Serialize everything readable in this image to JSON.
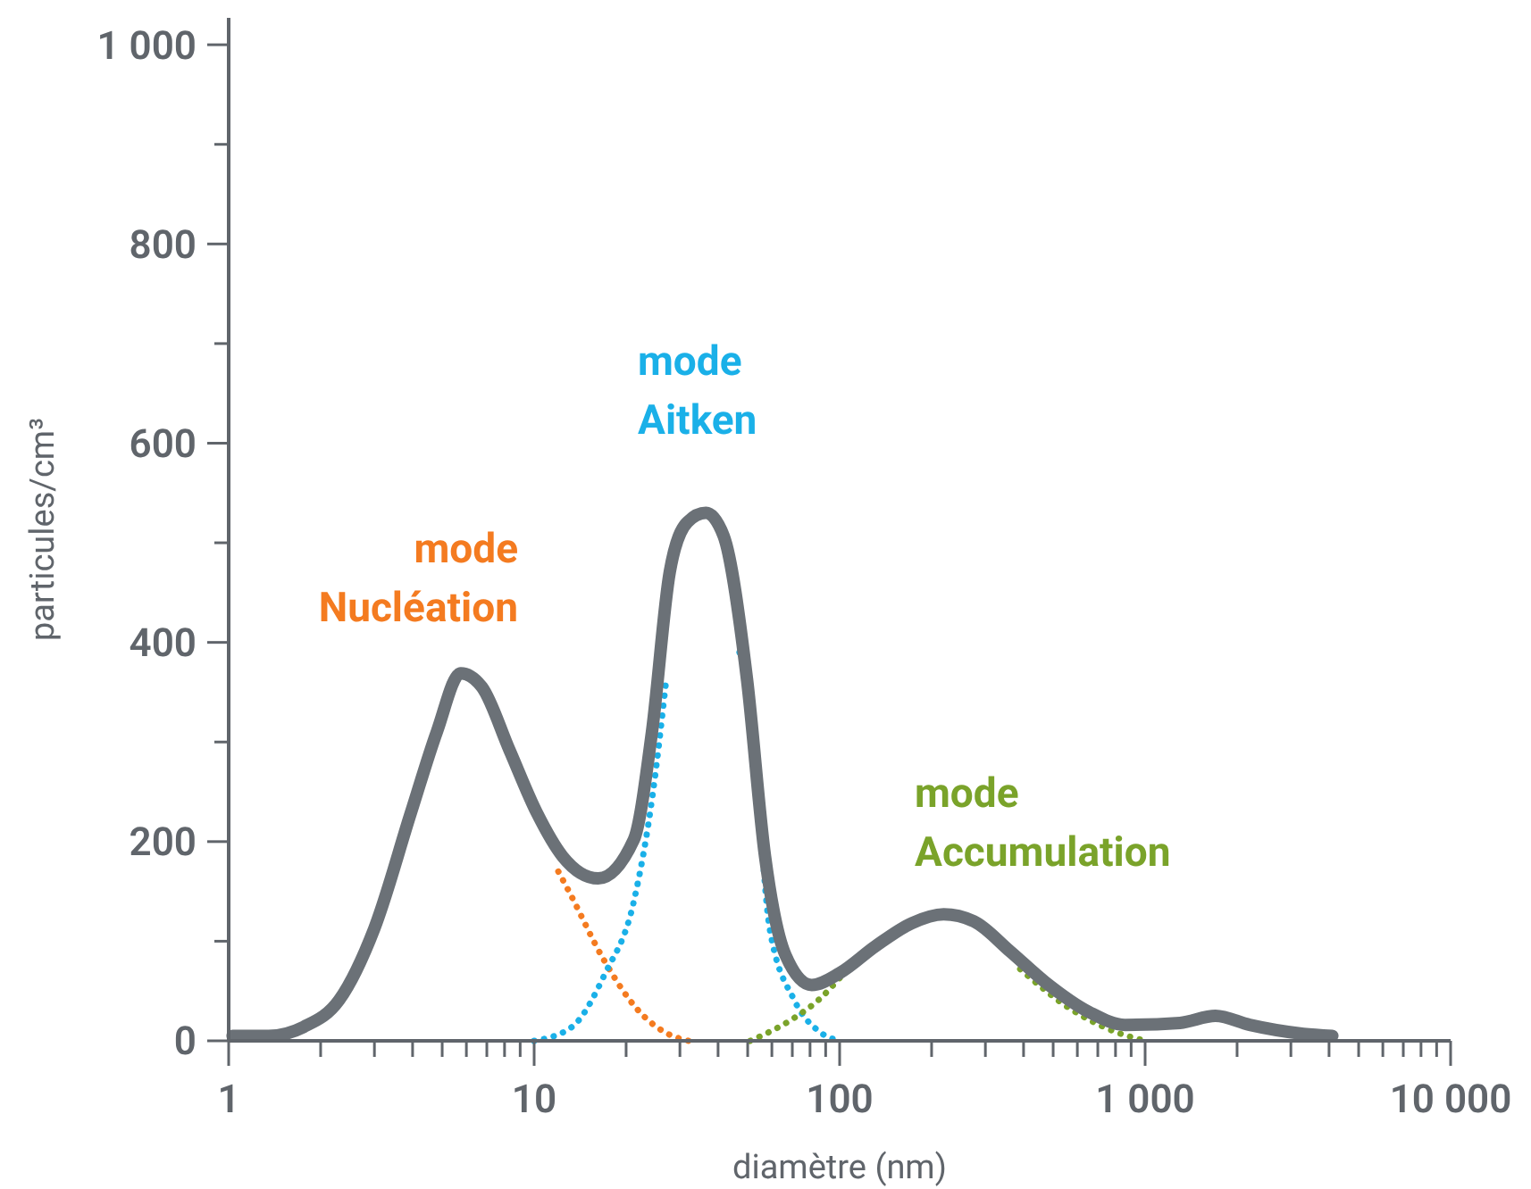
{
  "chart_data": {
    "type": "line",
    "xlabel": "diamètre (nm)",
    "ylabel": "particules/cm³",
    "log": "x",
    "grid": false,
    "marker": "none",
    "xlim": [
      1,
      10000
    ],
    "ylim": [
      0,
      1027
    ],
    "xticks": [
      1,
      {
        "value": 2,
        "label": null
      },
      {
        "value": 3,
        "label": null
      },
      {
        "value": 4,
        "label": null
      },
      {
        "value": 5,
        "label": null
      },
      {
        "value": 6,
        "label": null
      },
      {
        "value": 7,
        "label": null
      },
      {
        "value": 8,
        "label": null
      },
      {
        "value": 9,
        "label": null
      },
      10,
      {
        "value": 20,
        "label": null
      },
      {
        "value": 30,
        "label": null
      },
      {
        "value": 40,
        "label": null
      },
      {
        "value": 50,
        "label": null
      },
      {
        "value": 60,
        "label": null
      },
      {
        "value": 70,
        "label": null
      },
      {
        "value": 80,
        "label": null
      },
      {
        "value": 90,
        "label": null
      },
      100,
      {
        "value": 200,
        "label": null
      },
      {
        "value": 300,
        "label": null
      },
      {
        "value": 400,
        "label": null
      },
      {
        "value": 500,
        "label": null
      },
      {
        "value": 600,
        "label": null
      },
      {
        "value": 700,
        "label": null
      },
      {
        "value": 800,
        "label": null
      },
      {
        "value": 900,
        "label": null
      },
      {
        "value": 1000,
        "label": "1 000"
      },
      {
        "value": 2000,
        "label": null
      },
      {
        "value": 3000,
        "label": null
      },
      {
        "value": 4000,
        "label": null
      },
      {
        "value": 5000,
        "label": null
      },
      {
        "value": 6000,
        "label": null
      },
      {
        "value": 7000,
        "label": null
      },
      {
        "value": 8000,
        "label": null
      },
      {
        "value": 9000,
        "label": null
      },
      {
        "value": 10000,
        "label": "10 000"
      }
    ],
    "yticks": [
      0,
      {
        "value": 100,
        "label": null
      },
      200,
      {
        "value": 300,
        "label": null
      },
      400,
      {
        "value": 500,
        "label": null
      },
      600,
      {
        "value": 700,
        "label": null
      },
      800,
      {
        "value": 900,
        "label": null
      },
      {
        "value": 1000,
        "label": "1 000"
      }
    ],
    "series": [
      {
        "color": "#6b7177",
        "line_style": "solid",
        "x": [
          1.03,
          1.35,
          1.76,
          2.3,
          3.0,
          3.95,
          4.8,
          5.75,
          6.75,
          8.3,
          10.2,
          12.4,
          16.2,
          21.2,
          24.3,
          27.8,
          31.8,
          36.5,
          41.7,
          49.7,
          57,
          66.5,
          81,
          100,
          131,
          172,
          219,
          275,
          361,
          471,
          655,
          860,
          1300,
          1700,
          2200,
          3300,
          4100
        ],
        "values": [
          5,
          5,
          14,
          41,
          113,
          229,
          310,
          369,
          355,
          292,
          229,
          185,
          163,
          202,
          310,
          471,
          521,
          530,
          507,
          364,
          185,
          86,
          56,
          68,
          95,
          118,
          127,
          120,
          90,
          59,
          29,
          16,
          18,
          25,
          16,
          7,
          5
        ]
      },
      {
        "color": "#f47b20",
        "line_style": "dotted",
        "x": [
          12,
          13,
          17,
          22,
          27,
          32
        ],
        "values": [
          170,
          150,
          80,
          30,
          8,
          0
        ]
      },
      {
        "color": "#1ab0e8",
        "line_style": "dotted",
        "x": [
          10,
          13.3,
          17.1,
          21.2,
          24.5,
          27,
          36,
          47,
          51.5,
          59,
          71,
          86,
          100
        ],
        "values": [
          0,
          14,
          68,
          140,
          250,
          360,
          null,
          390,
          328,
          113,
          41,
          9,
          0
        ]
      },
      {
        "color": "#7aa32a",
        "line_style": "dotted",
        "x": [
          51,
          71,
          86,
          100,
          200,
          390,
          570,
          800,
          1000
        ],
        "values": [
          0,
          23,
          42,
          63,
          null,
          72,
          32,
          9,
          0
        ]
      }
    ],
    "annotations": [
      "mode\nNucléation",
      "mode\nAitken",
      "mode\nAccumulation"
    ]
  }
}
